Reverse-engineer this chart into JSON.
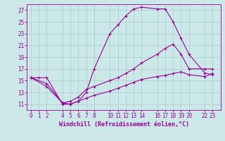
{
  "xlabel": "Windchill (Refroidissement éolien,°C)",
  "bg_color": "#cce8e8",
  "grid_color": "#aacccc",
  "line_color": "#990099",
  "x_ticks": [
    0,
    1,
    2,
    4,
    5,
    6,
    7,
    8,
    10,
    11,
    12,
    13,
    14,
    16,
    17,
    18,
    19,
    20,
    22,
    23
  ],
  "ylim": [
    10.0,
    28.0
  ],
  "xlim": [
    -0.5,
    24.0
  ],
  "y_ticks": [
    11,
    13,
    15,
    17,
    19,
    21,
    23,
    25,
    27
  ],
  "line1_x": [
    0,
    1,
    2,
    4,
    5,
    6,
    7,
    8,
    10,
    11,
    12,
    13,
    14,
    16,
    17,
    18,
    19,
    20,
    22,
    23
  ],
  "line1_y": [
    15.5,
    15.5,
    15.5,
    11.0,
    11.0,
    11.5,
    13.0,
    17.0,
    23.0,
    24.5,
    26.0,
    27.2,
    27.5,
    27.2,
    27.2,
    25.0,
    22.2,
    19.5,
    16.3,
    16.0
  ],
  "line2_x": [
    0,
    2,
    4,
    5,
    6,
    7,
    8,
    10,
    11,
    12,
    13,
    14,
    16,
    17,
    18,
    19,
    20,
    22,
    23
  ],
  "line2_y": [
    15.5,
    14.5,
    11.2,
    11.5,
    12.2,
    13.5,
    14.0,
    15.0,
    15.5,
    16.2,
    17.0,
    18.0,
    19.5,
    20.5,
    21.2,
    19.5,
    17.0,
    17.0,
    17.0
  ],
  "line3_x": [
    0,
    2,
    4,
    5,
    6,
    7,
    8,
    10,
    11,
    12,
    13,
    14,
    16,
    17,
    18,
    19,
    20,
    22,
    23
  ],
  "line3_y": [
    15.5,
    14.0,
    11.2,
    11.0,
    11.5,
    12.0,
    12.5,
    13.2,
    13.7,
    14.2,
    14.7,
    15.2,
    15.7,
    15.9,
    16.2,
    16.5,
    16.0,
    15.7,
    16.2
  ],
  "font_size": 6.0,
  "tick_font_size": 5.5,
  "marker": "+"
}
